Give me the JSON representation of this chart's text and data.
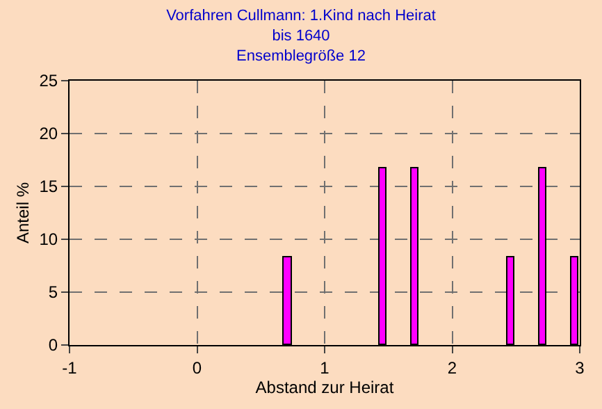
{
  "chart_data": {
    "type": "bar",
    "title": "Vorfahren Cullmann: 1.Kind nach Heirat\nbis 1640\nEnsemblegröße 12",
    "xlabel": "Abstand zur Heirat",
    "ylabel": "Anteil %",
    "x": [
      0.71,
      1.46,
      1.71,
      2.46,
      2.71,
      2.96
    ],
    "values": [
      8.3,
      16.7,
      16.7,
      8.3,
      16.7,
      8.3
    ],
    "color": "#ff00ff",
    "xlim": [
      -1,
      3
    ],
    "xticks": [
      -1,
      0,
      1,
      2,
      3
    ],
    "ylim": [
      0,
      25
    ],
    "yticks": [
      0,
      5,
      10,
      15,
      20,
      25
    ],
    "grid": true
  }
}
